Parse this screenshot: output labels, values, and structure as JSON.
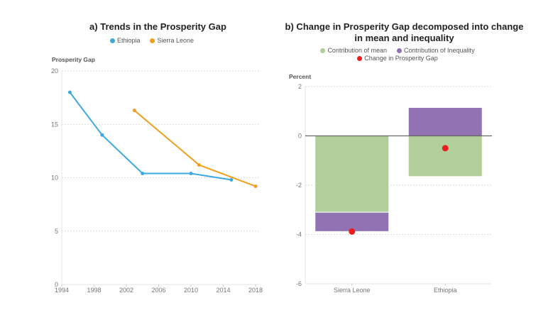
{
  "chart_data": [
    {
      "type": "line",
      "title": "a) Trends in the Prosperity Gap",
      "ylabel": "Prosperity Gap",
      "xlabel": "",
      "xlim": [
        1994,
        2018
      ],
      "ylim": [
        0,
        20
      ],
      "xticks": [
        "1994",
        "1998",
        "2002",
        "2006",
        "2010",
        "2014",
        "2018"
      ],
      "yticks": [
        "0",
        "5",
        "10",
        "15",
        "20"
      ],
      "grid": true,
      "legend_position": "top-center",
      "series": [
        {
          "name": "Ethiopia",
          "color": "#3ea8e0",
          "x": [
            1995,
            1999,
            2004,
            2010,
            2015
          ],
          "y": [
            18.0,
            14.0,
            10.4,
            10.4,
            9.8
          ]
        },
        {
          "name": "Sierra Leone",
          "color": "#f0a020",
          "x": [
            2003,
            2011,
            2018
          ],
          "y": [
            16.3,
            11.2,
            9.2
          ]
        }
      ]
    },
    {
      "type": "bar",
      "title": "b) Change in Prosperity Gap decomposed into change in mean and inequality",
      "title_lines": [
        "b) Change in Prosperity Gap decomposed into change",
        "in mean and inequality"
      ],
      "ylabel": "Percent",
      "xlabel": "",
      "ylim": [
        -6,
        2
      ],
      "yticks": [
        "-6",
        "-4",
        "-2",
        "0",
        "2"
      ],
      "grid": true,
      "legend_position": "top-center",
      "categories": [
        "Sierra Leone",
        "Ethiopia"
      ],
      "series": [
        {
          "name": "Contribution of mean",
          "color": "#b0cf9a",
          "type": "bar",
          "values": [
            -3.1,
            -1.65
          ]
        },
        {
          "name": "Contribution of Inequality",
          "color": "#9172b2",
          "type": "bar",
          "values": [
            -0.78,
            1.15
          ]
        },
        {
          "name": "Change in Prosperity Gap",
          "color": "#ee1c1c",
          "type": "scatter",
          "values": [
            -3.88,
            -0.5
          ]
        }
      ]
    }
  ]
}
